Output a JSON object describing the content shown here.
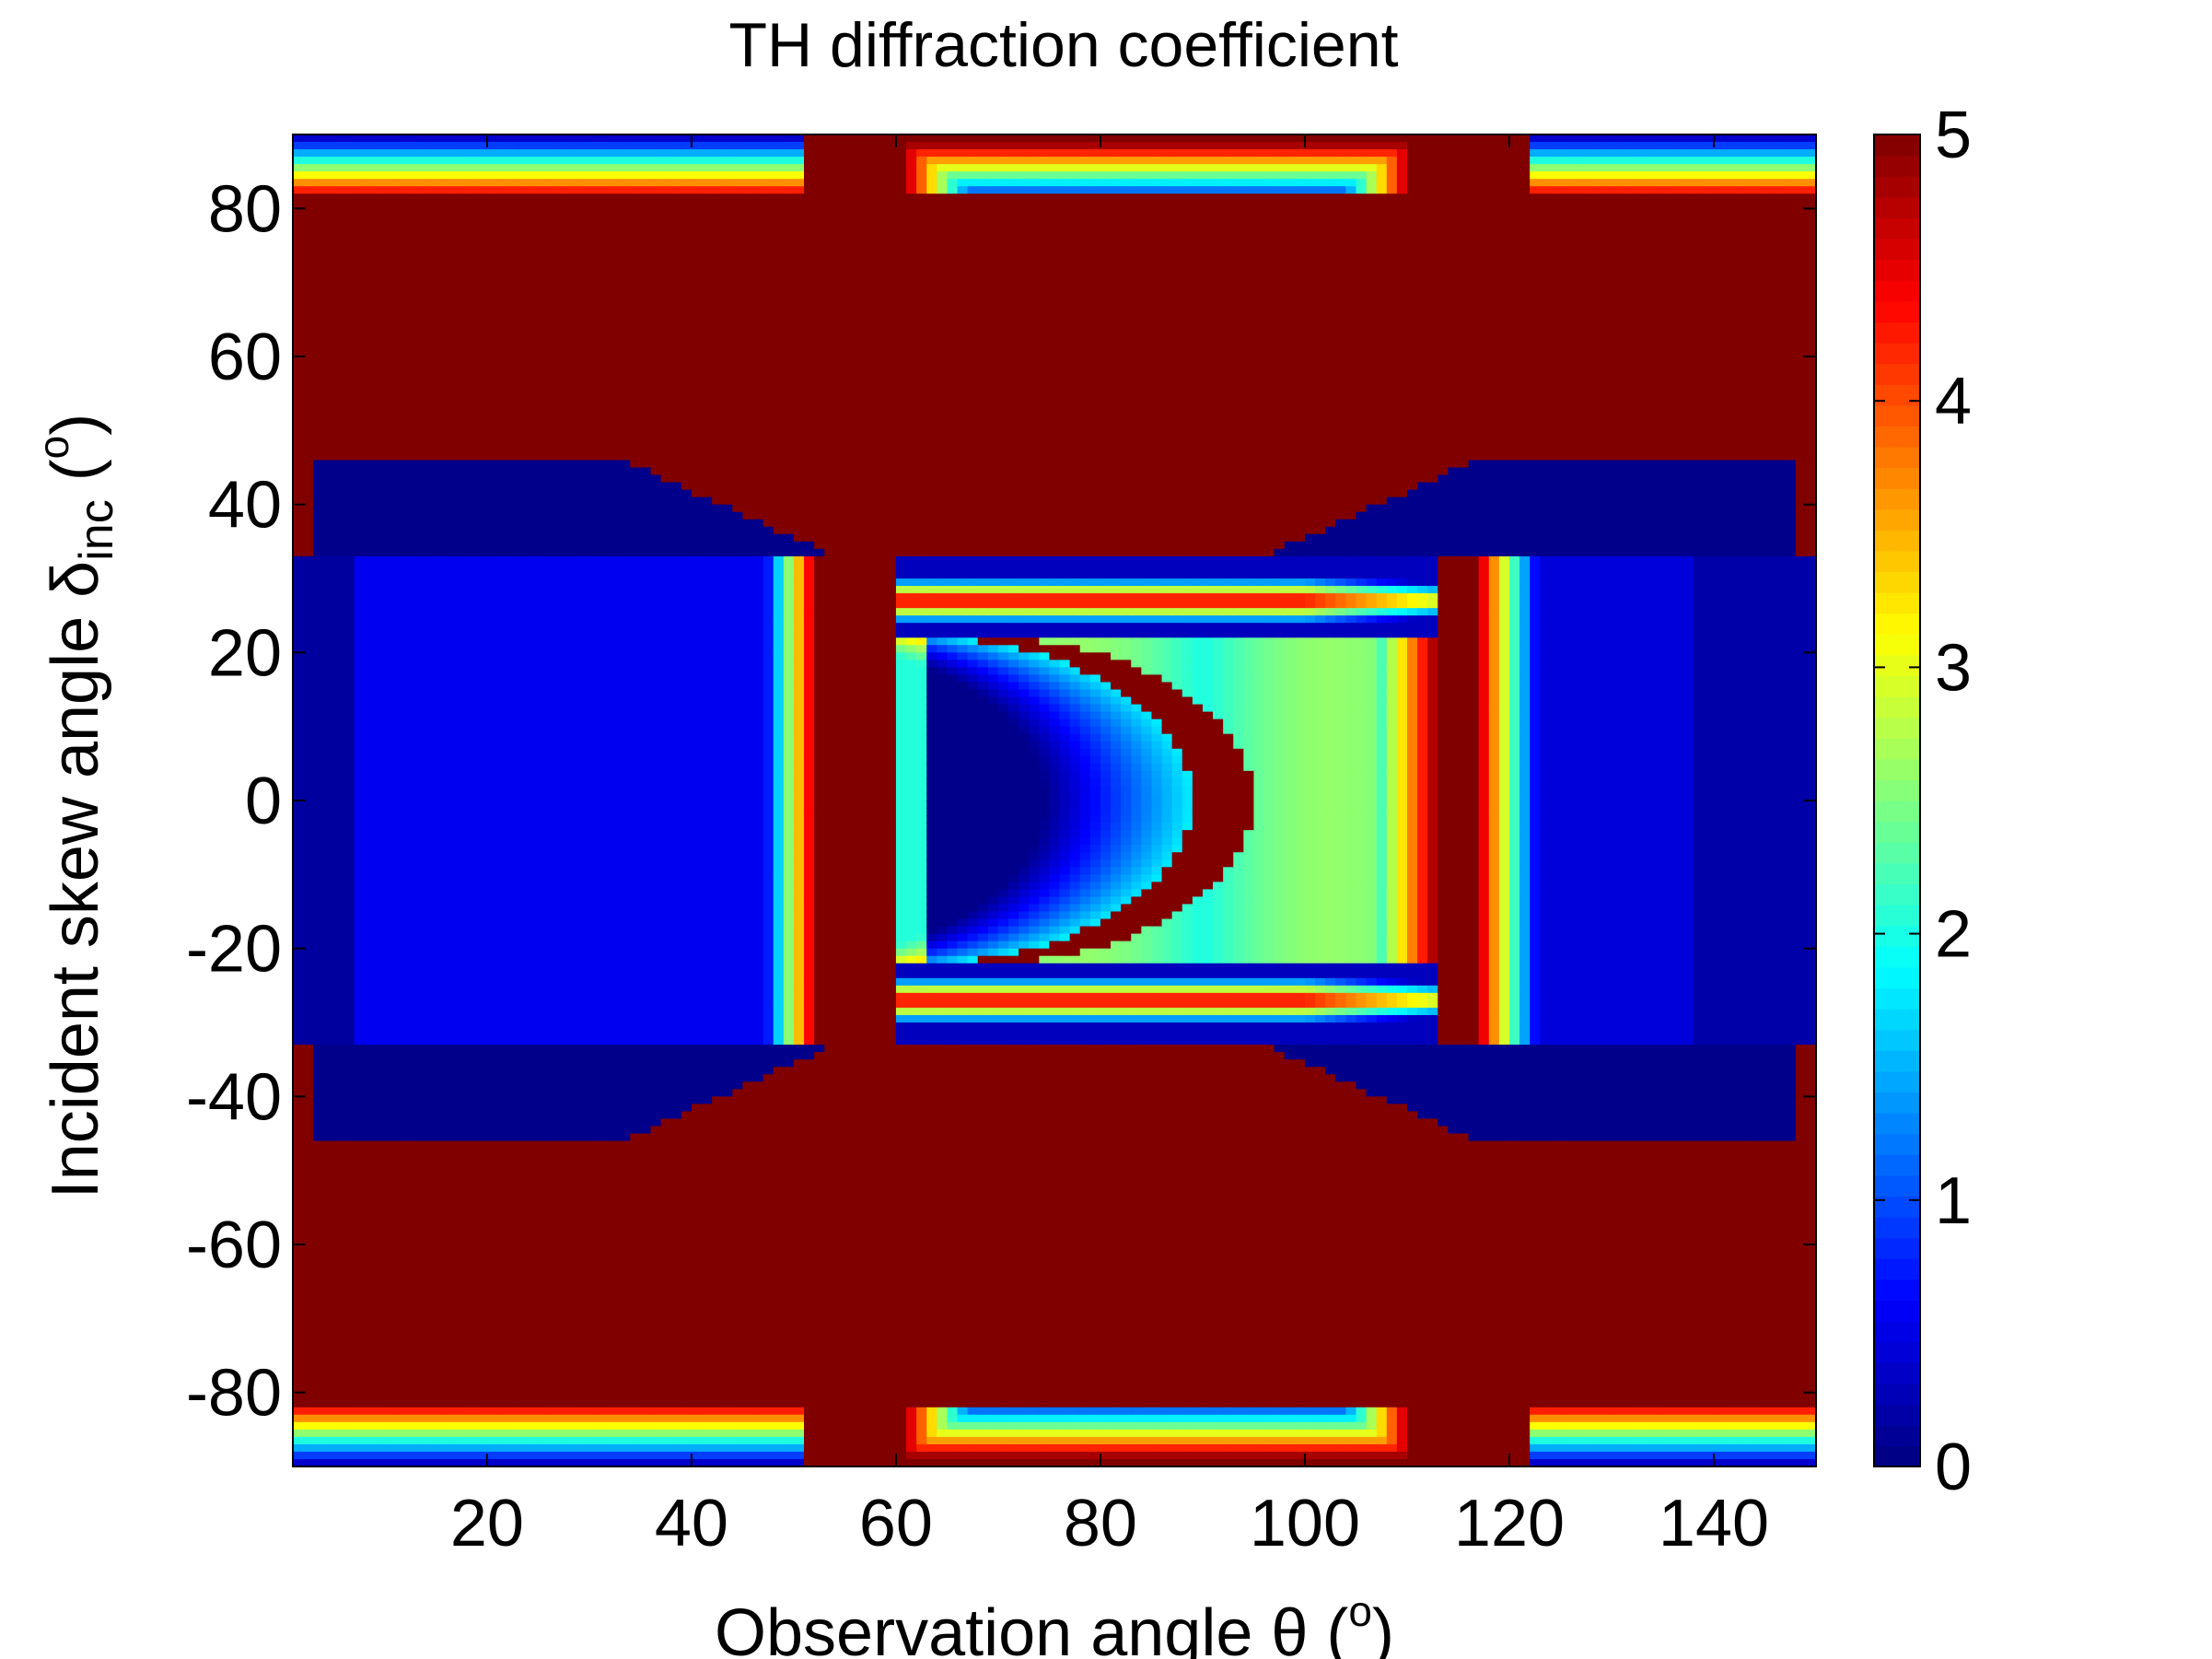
{
  "chart_data": {
    "type": "heatmap",
    "title": "TH diffraction coefficient",
    "xlabel": "Observation angle θ (°)",
    "ylabel": "Incident skew angle δinc (°)",
    "xlabel_parts": {
      "main": "Observation angle θ (",
      "sup": "o",
      "tail": ")"
    },
    "ylabel_parts": {
      "main": "Incident skew angle δ",
      "sub": "inc",
      "mid": " (",
      "sup": "o",
      "tail": ")"
    },
    "xlim": [
      1,
      150
    ],
    "ylim": [
      -90,
      90
    ],
    "x_ticks": [
      20,
      40,
      60,
      80,
      100,
      120,
      140
    ],
    "y_ticks": [
      -80,
      -60,
      -40,
      -20,
      0,
      20,
      40,
      60,
      80
    ],
    "colorbar": {
      "min": 0,
      "max": 5,
      "ticks": [
        0,
        1,
        2,
        3,
        4,
        5
      ],
      "colormap": "jet"
    },
    "grid": false,
    "legend": "colorbar-right",
    "z_description": "TH diffraction coefficient magnitude, clipped to [0, 5]"
  },
  "colors": {
    "jet_low": "#00008f",
    "jet_high": "#800000",
    "axis": "#000000",
    "background": "#ffffff"
  }
}
